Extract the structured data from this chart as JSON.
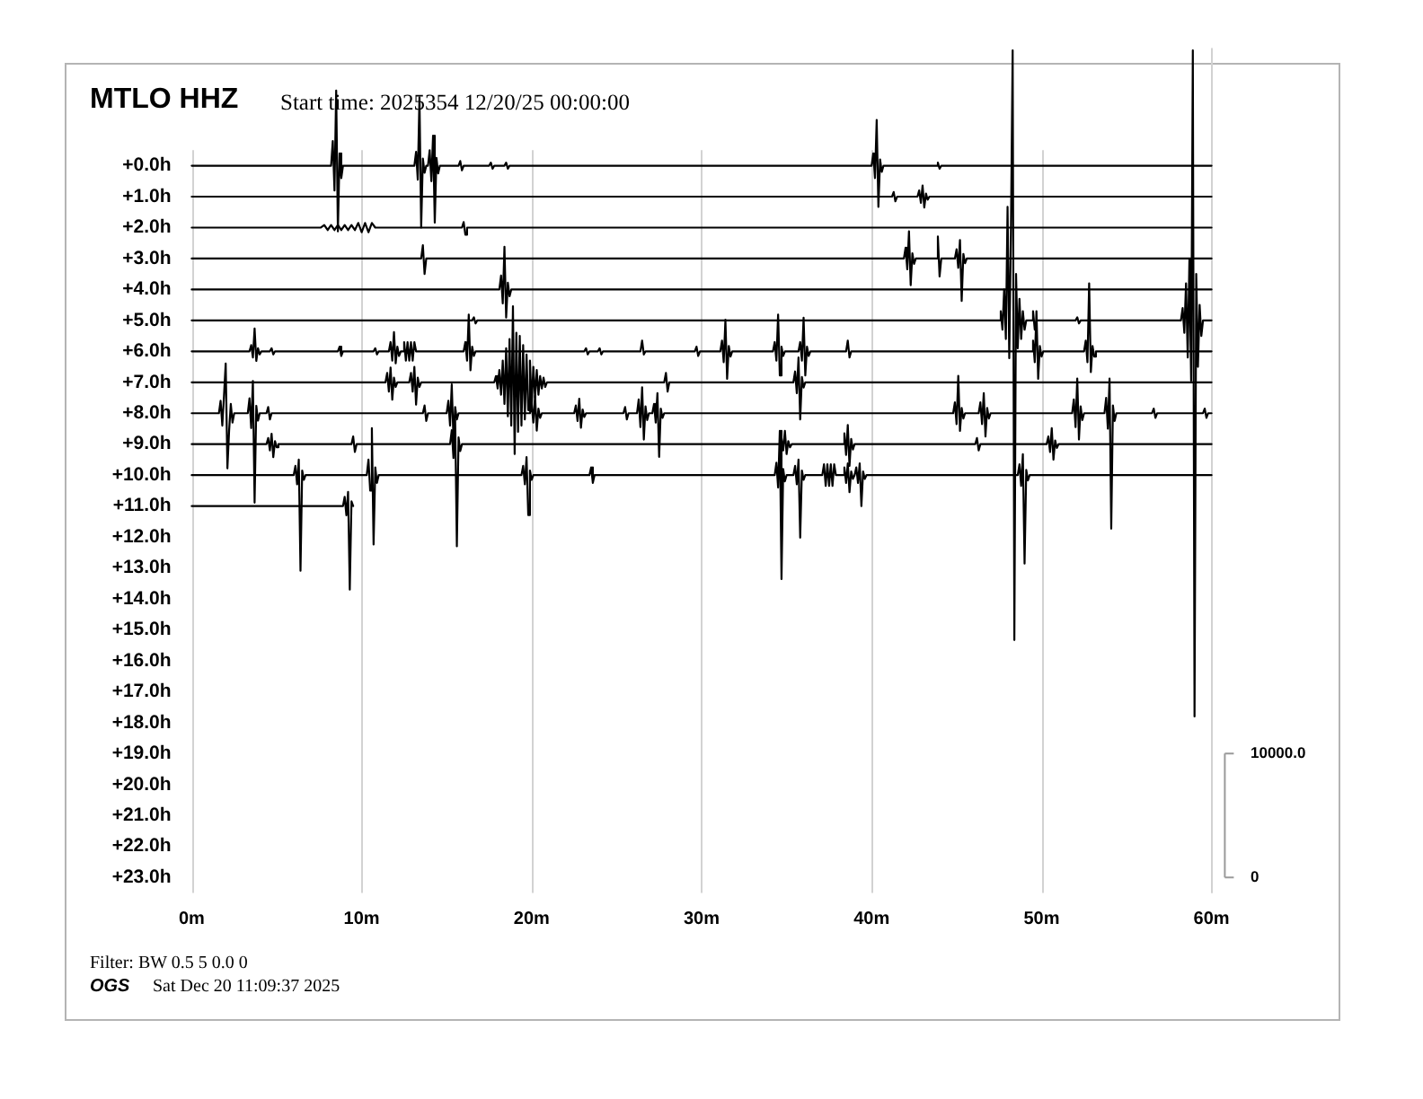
{
  "chart_data": {
    "type": "line",
    "title": "MTLO HHZ",
    "subtitle": "Start time: 2025354 12/20/25 00:00:00",
    "annotations": [
      "Filter: BW 0.5 5 0.0 0",
      "OGS",
      "Sat Dec 20 11:09:37 2025"
    ],
    "xlim": [
      0,
      60
    ],
    "xticks": [
      {
        "value": 0,
        "label": "0m"
      },
      {
        "value": 10,
        "label": "10m"
      },
      {
        "value": 20,
        "label": "20m"
      },
      {
        "value": 30,
        "label": "30m"
      },
      {
        "value": 40,
        "label": "40m"
      },
      {
        "value": 50,
        "label": "50m"
      },
      {
        "value": 60,
        "label": "60m"
      }
    ],
    "ylim": [
      23.5,
      -3.8
    ],
    "yticks": [
      {
        "value": 0,
        "label": "+0.0h"
      },
      {
        "value": 1,
        "label": "+1.0h"
      },
      {
        "value": 2,
        "label": "+2.0h"
      },
      {
        "value": 3,
        "label": "+3.0h"
      },
      {
        "value": 4,
        "label": "+4.0h"
      },
      {
        "value": 5,
        "label": "+5.0h"
      },
      {
        "value": 6,
        "label": "+6.0h"
      },
      {
        "value": 7,
        "label": "+7.0h"
      },
      {
        "value": 8,
        "label": "+8.0h"
      },
      {
        "value": 9,
        "label": "+9.0h"
      },
      {
        "value": 10,
        "label": "+10.0h"
      },
      {
        "value": 11,
        "label": "+11.0h"
      },
      {
        "value": 12,
        "label": "+12.0h"
      },
      {
        "value": 13,
        "label": "+13.0h"
      },
      {
        "value": 14,
        "label": "+14.0h"
      },
      {
        "value": 15,
        "label": "+15.0h"
      },
      {
        "value": 16,
        "label": "+16.0h"
      },
      {
        "value": 17,
        "label": "+17.0h"
      },
      {
        "value": 18,
        "label": "+18.0h"
      },
      {
        "value": 19,
        "label": "+19.0h"
      },
      {
        "value": 20,
        "label": "+20.0h"
      },
      {
        "value": 21,
        "label": "+21.0h"
      },
      {
        "value": 22,
        "label": "+22.0h"
      },
      {
        "value": 23,
        "label": "+23.0h"
      }
    ],
    "y2lim": [
      -1250,
      67000
    ],
    "y2ticks": [
      0,
      {
        "value": 10000,
        "label": "10000.0"
      }
    ],
    "grid": "x",
    "marker": "none",
    "series": [
      {
        "color": "#000000",
        "x": [
          0,
          8.2,
          8.3,
          8.4,
          8.5,
          8.6,
          8.7,
          8.8,
          8.9,
          13.1,
          13.2,
          13.3,
          13.4,
          13.5,
          13.6,
          13.7,
          13.8,
          13.9,
          14.0,
          14.1,
          14.2,
          14.3,
          14.4,
          14.5,
          14.6,
          15.7,
          15.8,
          15.9,
          16.0,
          17.5,
          17.6,
          17.7,
          17.8,
          18.4,
          18.5,
          18.6,
          18.7,
          40.0,
          40.1,
          40.2,
          40.3,
          40.4,
          40.5,
          40.6,
          40.7,
          43.8,
          43.9,
          44.0,
          44.1,
          60
        ],
        "values": [
          0,
          0,
          -0.8,
          0.8,
          -2.43,
          2.12,
          -0.4,
          0.4,
          0,
          0,
          -0.45,
          0.45,
          -2.21,
          2.0,
          -0.23,
          0.23,
          0,
          0,
          -0.5,
          0.5,
          -0.97,
          1.84,
          -0.25,
          0.25,
          0,
          0,
          -0.15,
          0.15,
          0,
          0,
          -0.1,
          0.1,
          0,
          0,
          -0.1,
          0.1,
          0,
          0,
          -0.4,
          0.4,
          -1.48,
          1.33,
          -0.2,
          0.2,
          0,
          0,
          -0.1,
          0.1,
          0,
          0
        ]
      },
      {
        "color": "#000000",
        "x": [
          0,
          41.2,
          41.3,
          41.4,
          41.5,
          42.7,
          42.8,
          42.9,
          43.0,
          43.1,
          43.2,
          43.3,
          43.4,
          60
        ],
        "values": [
          1,
          1,
          0.85,
          1.15,
          1,
          1,
          0.8,
          1.2,
          0.64,
          1.35,
          0.9,
          1.1,
          1,
          1
        ]
      },
      {
        "color": "#000000",
        "x": [
          0,
          7.6,
          7.8,
          8.0,
          8.2,
          8.4,
          8.6,
          8.8,
          9.0,
          9.2,
          9.4,
          9.6,
          9.8,
          10.0,
          10.2,
          10.4,
          10.6,
          10.8,
          15.9,
          16.0,
          16.1,
          16.2,
          60
        ],
        "values": [
          2,
          2,
          1.92,
          2.08,
          1.92,
          2.08,
          1.92,
          2.08,
          1.92,
          2.08,
          1.92,
          2.08,
          1.85,
          2.15,
          1.85,
          2.15,
          1.85,
          2,
          2,
          1.82,
          2.23,
          2,
          2
        ]
      },
      {
        "color": "#000000",
        "x": [
          0,
          13.5,
          13.6,
          13.7,
          13.8,
          41.9,
          42.0,
          42.1,
          42.2,
          42.3,
          42.4,
          42.5,
          42.6,
          43.8,
          43.9,
          44.0,
          44.1,
          44.9,
          45.0,
          45.1,
          45.2,
          45.3,
          45.4,
          45.5,
          45.6,
          60
        ],
        "values": [
          3,
          3,
          2.57,
          3.5,
          3,
          3,
          2.65,
          3.35,
          2.12,
          3.86,
          2.83,
          3.17,
          3,
          3,
          2.29,
          3.58,
          3,
          3,
          2.7,
          3.3,
          2.4,
          4.37,
          2.85,
          3.15,
          3,
          3
        ]
      },
      {
        "color": "#000000",
        "x": [
          0,
          18.1,
          18.2,
          18.3,
          18.4,
          18.5,
          18.6,
          18.7,
          18.8,
          60
        ],
        "values": [
          4,
          4,
          3.55,
          4.45,
          2.62,
          4.91,
          3.78,
          4.22,
          4,
          4
        ]
      },
      {
        "color": "#000000",
        "x": [
          0,
          16.5,
          16.6,
          16.7,
          16.8,
          47.5,
          47.6,
          47.7,
          47.8,
          47.9,
          48.0,
          48.1,
          48.2,
          48.3,
          48.4,
          48.5,
          48.6,
          48.7,
          48.8,
          48.9,
          49.0,
          49.1,
          49.4,
          49.5,
          49.6,
          49.7,
          52.0,
          52.1,
          52.2,
          52.3,
          58.2,
          58.3,
          58.4,
          58.5,
          58.6,
          58.7,
          58.8,
          58.9,
          59.0,
          59.1,
          59.2,
          59.3,
          59.4,
          59.5,
          60
        ],
        "values": [
          5,
          5,
          4.9,
          5.1,
          5,
          5,
          4.7,
          5.3,
          4.0,
          5.6,
          1.33,
          6.22,
          2.0,
          -3.73,
          15.33,
          3.5,
          5.9,
          4.3,
          5.6,
          4.7,
          5.3,
          5,
          5,
          4.7,
          5.3,
          5,
          5,
          4.9,
          5.1,
          5,
          5,
          4.6,
          5.4,
          3.8,
          6.2,
          3.02,
          6.95,
          -3.73,
          17.8,
          3.5,
          6.5,
          4.5,
          5.5,
          5,
          5
        ]
      },
      {
        "color": "#000000",
        "x": [
          0,
          3.4,
          3.5,
          3.6,
          3.7,
          3.8,
          3.9,
          4.0,
          4.1,
          4.6,
          4.7,
          4.8,
          4.9,
          8.6,
          8.7,
          8.8,
          8.9,
          10.7,
          10.8,
          10.9,
          11.0,
          11.6,
          11.7,
          11.8,
          11.9,
          12.0,
          12.1,
          12.2,
          12.3,
          12.4,
          12.5,
          12.6,
          12.7,
          12.8,
          12.9,
          13.0,
          13.1,
          13.2,
          16.0,
          16.1,
          16.2,
          16.3,
          16.4,
          16.5,
          16.6,
          16.7,
          23.1,
          23.2,
          23.3,
          23.4,
          23.9,
          24.0,
          24.1,
          24.2,
          26.4,
          26.5,
          26.6,
          26.7,
          29.6,
          29.7,
          29.8,
          29.9,
          31.1,
          31.2,
          31.3,
          31.4,
          31.5,
          31.6,
          31.7,
          31.8,
          34.2,
          34.3,
          34.4,
          34.5,
          34.6,
          34.7,
          34.8,
          34.9,
          35.7,
          35.8,
          35.9,
          36.0,
          36.1,
          36.2,
          36.3,
          36.4,
          38.5,
          38.6,
          38.7,
          38.8,
          49.4,
          49.5,
          49.6,
          49.7,
          49.8,
          49.9,
          50.0,
          50.1,
          52.5,
          52.6,
          52.7,
          52.8,
          52.9,
          53.0,
          53.1,
          53.2,
          60
        ],
        "values": [
          6,
          6,
          5.8,
          6.2,
          5.26,
          6.31,
          5.9,
          6.1,
          6,
          6,
          5.9,
          6.1,
          6,
          6,
          5.85,
          6.15,
          6,
          6,
          5.9,
          6.1,
          6,
          6,
          5.7,
          6.3,
          5.38,
          6.39,
          5.85,
          6.15,
          6,
          6,
          5.7,
          6.3,
          5.7,
          6.3,
          5.7,
          6.3,
          5.7,
          6,
          6,
          5.7,
          6.3,
          4.81,
          6.61,
          5.85,
          6.15,
          6,
          6,
          5.9,
          6.1,
          6,
          6,
          5.9,
          6.1,
          6,
          6,
          5.65,
          6.1,
          6,
          6,
          5.85,
          6.15,
          6,
          6,
          5.65,
          6.35,
          4.98,
          6.89,
          5.83,
          6.17,
          6,
          6,
          5.7,
          6.3,
          4.81,
          6.78,
          5.85,
          6.15,
          6,
          6,
          5.7,
          6.3,
          4.91,
          6.78,
          5.85,
          6.15,
          6,
          6,
          5.65,
          6.2,
          6,
          6,
          5.65,
          6.35,
          4.7,
          6.89,
          5.83,
          6.17,
          6,
          6,
          5.65,
          6.35,
          3.8,
          6.67,
          5.83,
          6.17,
          6,
          6
        ]
      },
      {
        "color": "#000000",
        "x": [
          0,
          11.4,
          11.5,
          11.6,
          11.7,
          11.8,
          11.9,
          12.0,
          12.1,
          12.8,
          12.9,
          13.0,
          13.1,
          13.2,
          13.3,
          13.4,
          13.5,
          17.8,
          17.9,
          18.0,
          18.1,
          18.2,
          18.3,
          18.4,
          18.5,
          18.6,
          18.7,
          18.8,
          18.9,
          19.0,
          19.1,
          19.2,
          19.3,
          19.4,
          19.5,
          19.6,
          19.7,
          19.8,
          19.9,
          20.0,
          20.1,
          20.2,
          20.3,
          20.4,
          20.5,
          20.6,
          20.7,
          20.8,
          20.9,
          27.8,
          27.9,
          28.0,
          28.1,
          35.4,
          35.5,
          35.6,
          35.7,
          35.8,
          35.9,
          36.0,
          36.1,
          60
        ],
        "values": [
          7,
          7,
          6.7,
          7.3,
          6.52,
          7.56,
          6.85,
          7.15,
          7,
          7,
          6.7,
          7.3,
          6.5,
          7.72,
          6.85,
          7.15,
          7,
          7,
          6.8,
          7.2,
          6.6,
          7.4,
          6.3,
          7.7,
          5.9,
          8.1,
          5.6,
          8.4,
          4.54,
          9.32,
          5.4,
          8.6,
          5.5,
          8.4,
          5.8,
          8.2,
          6.1,
          7.9,
          6.3,
          7.7,
          6.5,
          7.5,
          6.6,
          7.4,
          6.8,
          7.2,
          6.85,
          7.15,
          7,
          7,
          6.7,
          7.3,
          7,
          7,
          6.65,
          7.35,
          6.2,
          8.2,
          6.83,
          7.17,
          7,
          7
        ]
      },
      {
        "color": "#000000",
        "x": [
          0,
          1.6,
          1.7,
          1.8,
          1.9,
          2.0,
          2.1,
          2.2,
          2.3,
          2.4,
          2.5,
          3.3,
          3.4,
          3.5,
          3.6,
          3.7,
          3.8,
          3.9,
          4.0,
          4.4,
          4.5,
          4.6,
          4.7,
          13.6,
          13.7,
          13.8,
          13.9,
          15.0,
          15.1,
          15.2,
          15.3,
          15.4,
          15.5,
          15.6,
          15.7,
          19.9,
          20.0,
          20.1,
          20.2,
          20.3,
          20.4,
          20.5,
          20.6,
          22.5,
          22.6,
          22.7,
          22.8,
          22.9,
          23.0,
          23.1,
          23.2,
          25.4,
          25.5,
          25.6,
          25.7,
          26.2,
          26.3,
          26.4,
          26.5,
          26.6,
          26.7,
          26.8,
          26.9,
          27.1,
          27.2,
          27.3,
          27.4,
          27.5,
          27.6,
          27.7,
          27.8,
          44.8,
          44.9,
          45.0,
          45.1,
          45.2,
          45.3,
          45.4,
          45.5,
          46.3,
          46.4,
          46.5,
          46.6,
          46.7,
          46.8,
          46.9,
          47.0,
          51.8,
          51.9,
          52.0,
          52.1,
          52.2,
          52.3,
          52.4,
          52.5,
          53.7,
          53.8,
          53.9,
          54.0,
          54.1,
          54.2,
          54.3,
          54.4,
          56.5,
          56.6,
          56.7,
          56.8,
          59.5,
          59.6,
          59.7,
          59.8,
          60
        ],
        "values": [
          8,
          8,
          7.6,
          8.4,
          7.43,
          6.39,
          9.78,
          8.57,
          7.7,
          8.3,
          8,
          8,
          7.52,
          8.48,
          6.96,
          10.89,
          7.76,
          8.24,
          8,
          8,
          7.8,
          8.2,
          8,
          8,
          7.75,
          8.25,
          8,
          8,
          7.6,
          8.4,
          7.07,
          8.85,
          7.8,
          8.2,
          8,
          8,
          7.7,
          8.3,
          7.44,
          8.56,
          7.85,
          8.15,
          8,
          8,
          7.75,
          8.25,
          7.53,
          8.47,
          7.88,
          8.12,
          8,
          8,
          7.8,
          8.2,
          8,
          8,
          7.55,
          8.45,
          7.16,
          8.85,
          7.78,
          8.22,
          8,
          8,
          7.7,
          8.3,
          7.35,
          9.41,
          7.85,
          8.15,
          8,
          8,
          7.65,
          8.35,
          6.79,
          8.57,
          7.83,
          8.17,
          8,
          8,
          7.65,
          8.35,
          7.35,
          8.75,
          7.83,
          8.17,
          8,
          8,
          7.55,
          8.45,
          6.88,
          8.85,
          7.78,
          8.22,
          8,
          8,
          7.5,
          8.5,
          6.88,
          11.73,
          7.75,
          8.25,
          8,
          8,
          7.85,
          8.15,
          8,
          8,
          7.85,
          8.15,
          8,
          8
        ]
      },
      {
        "color": "#000000",
        "x": [
          0,
          4.4,
          4.5,
          4.6,
          4.7,
          4.8,
          4.9,
          5.0,
          5.1,
          9.4,
          9.5,
          9.6,
          9.7,
          15.2,
          15.3,
          15.4,
          15.5,
          15.6,
          15.7,
          15.8,
          15.9,
          34.6,
          34.7,
          34.8,
          34.9,
          35.0,
          35.1,
          35.2,
          35.3,
          38.3,
          38.4,
          38.5,
          38.6,
          38.7,
          38.8,
          38.9,
          39.0,
          46.1,
          46.2,
          46.3,
          46.4,
          50.3,
          50.4,
          50.5,
          50.6,
          50.7,
          50.8,
          50.9,
          51.0,
          60
        ],
        "values": [
          9,
          9,
          8.8,
          9.2,
          8.66,
          9.42,
          8.9,
          9.1,
          9,
          9,
          8.75,
          9.25,
          9,
          9,
          8.55,
          9.45,
          8.2,
          12.3,
          8.78,
          9.22,
          9,
          9,
          8.8,
          9.2,
          8.57,
          9.32,
          8.9,
          9.1,
          9,
          9,
          8.65,
          9.35,
          8.38,
          9.7,
          8.83,
          9.17,
          9,
          9,
          8.8,
          9.2,
          9,
          9,
          8.75,
          9.25,
          8.48,
          9.5,
          8.88,
          9.12,
          9,
          9
        ]
      },
      {
        "color": "#000000",
        "x": [
          0,
          6.0,
          6.1,
          6.2,
          6.3,
          6.4,
          6.5,
          6.6,
          6.7,
          10.3,
          10.4,
          10.5,
          10.6,
          10.7,
          10.8,
          10.9,
          11.0,
          19.4,
          19.5,
          19.6,
          19.7,
          19.8,
          19.9,
          20.0,
          20.1,
          23.4,
          23.5,
          23.6,
          23.7,
          34.3,
          34.4,
          34.5,
          34.6,
          34.7,
          34.8,
          34.9,
          35.0,
          35.4,
          35.5,
          35.6,
          35.7,
          35.8,
          35.9,
          36.0,
          36.1,
          37.1,
          37.2,
          37.3,
          37.4,
          37.5,
          37.6,
          37.7,
          37.8,
          37.9,
          38.3,
          38.4,
          38.5,
          38.6,
          38.7,
          38.8,
          38.9,
          39.0,
          39.1,
          39.2,
          39.3,
          39.4,
          39.5,
          39.6,
          39.7,
          48.6,
          48.7,
          48.8,
          48.9,
          49.0,
          49.1,
          49.2,
          49.3,
          60
        ],
        "values": [
          10,
          10,
          9.7,
          10.3,
          9.5,
          13.09,
          9.85,
          10.15,
          10,
          10,
          9.5,
          10.5,
          8.48,
          12.24,
          9.75,
          10.25,
          10,
          10,
          9.7,
          10.3,
          9.42,
          11.29,
          9.85,
          10.15,
          10,
          10,
          9.75,
          10.25,
          10,
          10,
          9.6,
          10.4,
          8.57,
          13.36,
          9.8,
          10.2,
          10,
          10,
          9.7,
          10.3,
          9.5,
          12.02,
          9.85,
          10.15,
          10,
          10,
          9.65,
          10.35,
          9.65,
          10.35,
          9.65,
          10.35,
          9.65,
          10,
          10,
          9.75,
          10.25,
          9.62,
          10.55,
          9.88,
          10.12,
          10,
          9.75,
          10.25,
          9.62,
          11.0,
          9.88,
          10.12,
          10,
          10,
          9.65,
          10.35,
          9.32,
          12.86,
          9.83,
          10.17,
          10,
          10
        ]
      },
      {
        "color": "#000000",
        "x": [
          0,
          8.9,
          9.0,
          9.1,
          9.2,
          9.3,
          9.4,
          9.5
        ],
        "values": [
          11,
          11,
          10.7,
          11.3,
          10.54,
          13.7,
          10.85,
          11
        ]
      }
    ]
  }
}
